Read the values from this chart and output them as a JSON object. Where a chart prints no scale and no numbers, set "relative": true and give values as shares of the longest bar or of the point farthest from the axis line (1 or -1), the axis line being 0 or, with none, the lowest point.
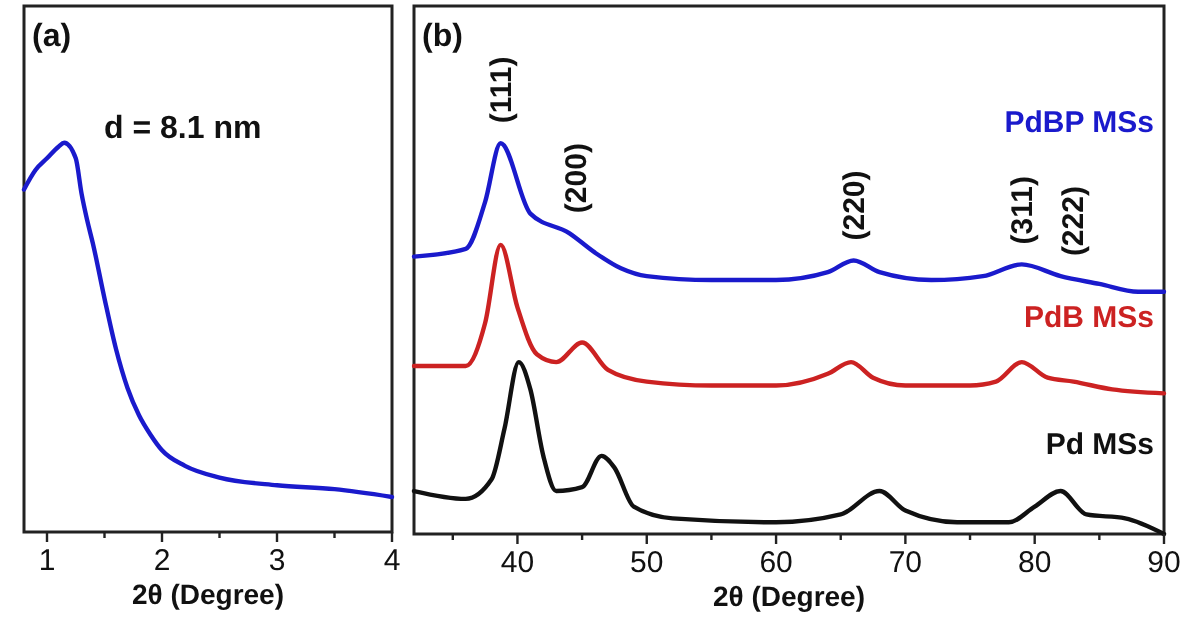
{
  "chart_data": [
    {
      "type": "line",
      "title": "(a)",
      "xlabel": "2θ (Degree)",
      "relative": true,
      "tick_labels": "x",
      "xlim": [
        0.8,
        4
      ],
      "xticks": [
        1,
        {
          "value": 1.5,
          "label": null
        },
        2,
        {
          "value": 2.5,
          "label": null
        },
        3,
        {
          "value": 3.5,
          "label": null
        },
        4
      ],
      "annotations": [
        "d = 8.1 nm"
      ],
      "series": [
        {
          "color": "#1a1acc",
          "x": [
            0.8,
            0.9,
            1.0,
            1.1,
            1.15,
            1.25,
            1.3,
            1.35,
            1.4,
            1.5,
            1.6,
            1.7,
            1.8,
            1.9,
            2.0,
            2.2,
            2.5,
            3.0,
            3.5,
            4.0
          ],
          "values": [
            0.88,
            0.93,
            0.96,
            0.99,
            1.0,
            0.96,
            0.87,
            0.8,
            0.74,
            0.6,
            0.47,
            0.37,
            0.3,
            0.25,
            0.21,
            0.17,
            0.14,
            0.12,
            0.11,
            0.09
          ]
        }
      ]
    },
    {
      "type": "line",
      "title": "(b)",
      "xlabel": "2θ (Degree)",
      "relative": true,
      "tick_labels": "x",
      "xlim": [
        32,
        90
      ],
      "xticks": [
        {
          "value": 35,
          "label": null
        },
        40,
        {
          "value": 45,
          "label": null
        },
        50,
        {
          "value": 55,
          "label": null
        },
        60,
        {
          "value": 65,
          "label": null
        },
        70,
        {
          "value": 75,
          "label": null
        },
        80,
        {
          "value": 85,
          "label": null
        },
        90
      ],
      "annotations": [
        {
          "text": "(111)",
          "x": 38.7,
          "y": 1.0
        },
        {
          "text": "(200)",
          "x": 44.5,
          "y": 0.77
        },
        {
          "text": "(220)",
          "x": 66,
          "y": 0.7
        },
        {
          "text": "(311)",
          "x": 79,
          "y": 0.69
        },
        {
          "text": "(222)",
          "x": 83,
          "y": 0.66
        }
      ],
      "series": [
        {
          "name": "Pd MSs",
          "color": "#111111",
          "x": [
            32,
            36,
            38,
            39,
            40.1,
            41,
            42,
            43,
            45,
            46.5,
            47.5,
            49,
            52,
            60,
            65,
            68,
            70,
            74,
            78,
            80,
            82,
            84,
            87,
            90
          ],
          "values": [
            0.11,
            0.09,
            0.14,
            0.27,
            0.44,
            0.37,
            0.2,
            0.11,
            0.12,
            0.2,
            0.17,
            0.07,
            0.04,
            0.03,
            0.05,
            0.11,
            0.06,
            0.03,
            0.03,
            0.07,
            0.11,
            0.05,
            0.04,
            0
          ]
        },
        {
          "name": "PdB MSs",
          "color": "#cc2222",
          "x": [
            32,
            36,
            37.5,
            38.7,
            40,
            41.5,
            43,
            45,
            47,
            50,
            55,
            60,
            64,
            65.8,
            67.5,
            70,
            75,
            77,
            79,
            81,
            83,
            86,
            90
          ],
          "values": [
            0.43,
            0.43,
            0.54,
            0.74,
            0.58,
            0.46,
            0.44,
            0.49,
            0.42,
            0.39,
            0.38,
            0.38,
            0.41,
            0.44,
            0.4,
            0.38,
            0.38,
            0.39,
            0.44,
            0.4,
            0.39,
            0.37,
            0.36
          ]
        },
        {
          "name": "PdBP MSs",
          "color": "#1a1acc",
          "x": [
            32,
            36,
            37.5,
            38.7,
            41,
            44,
            46,
            48,
            50,
            55,
            60,
            64,
            66,
            68,
            72,
            76,
            79,
            82,
            85,
            88,
            90
          ],
          "values": [
            0.71,
            0.73,
            0.85,
            1.0,
            0.82,
            0.77,
            0.72,
            0.68,
            0.66,
            0.65,
            0.65,
            0.67,
            0.7,
            0.67,
            0.65,
            0.66,
            0.69,
            0.66,
            0.64,
            0.62,
            0.62
          ]
        }
      ]
    }
  ]
}
